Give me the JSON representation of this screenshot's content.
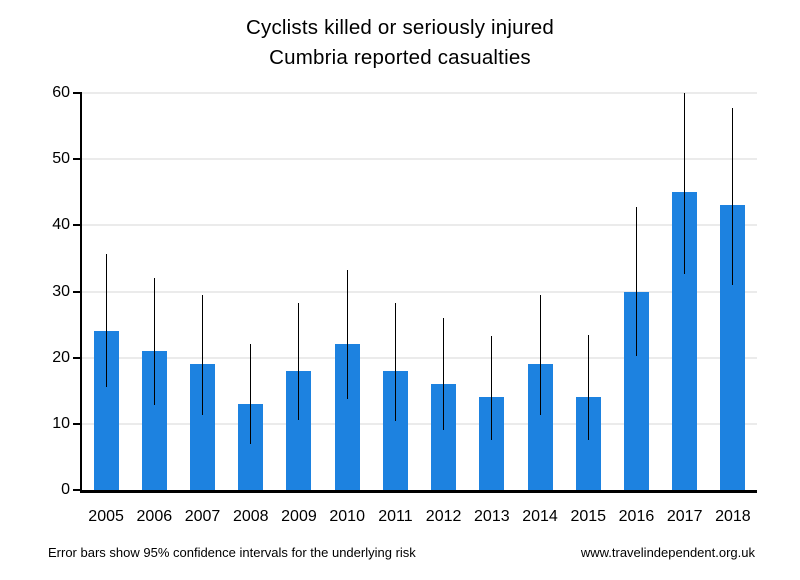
{
  "title": {
    "line1": "Cyclists killed or seriously injured",
    "line2": "Cumbria reported casualties"
  },
  "footer": {
    "note": "Error bars show 95% confidence intervals for the underlying risk",
    "website": "www.travelindependent.org.uk"
  },
  "chart_data": {
    "type": "bar",
    "title": "Cyclists killed or seriously injured\nCumbria reported casualties",
    "categories": [
      "2005",
      "2006",
      "2007",
      "2008",
      "2009",
      "2010",
      "2011",
      "2012",
      "2013",
      "2014",
      "2015",
      "2016",
      "2017",
      "2018"
    ],
    "values": [
      24,
      21,
      19,
      13,
      18,
      22,
      18,
      16,
      14,
      19,
      14,
      30,
      45,
      43
    ],
    "error_low": [
      15.5,
      12.8,
      11.3,
      7.0,
      10.6,
      13.7,
      10.5,
      9.0,
      7.5,
      11.3,
      7.5,
      20.2,
      32.7,
      31.0
    ],
    "error_high": [
      35.6,
      32.1,
      29.5,
      22.1,
      28.3,
      33.3,
      28.3,
      26.0,
      23.3,
      29.5,
      23.4,
      42.8,
      60.0,
      57.7
    ],
    "error_note": "95% confidence intervals for the underlying risk",
    "xlabel": "",
    "ylabel": "",
    "ylim": [
      0,
      60
    ],
    "yticks": [
      0,
      10,
      20,
      30,
      40,
      50,
      60
    ],
    "grid": "horizontal",
    "legend": "none",
    "bar_color": "#1d82e0",
    "error_bar_color": "#000000",
    "gridline_color": "#ebebeb",
    "axis_color": "#000000"
  }
}
